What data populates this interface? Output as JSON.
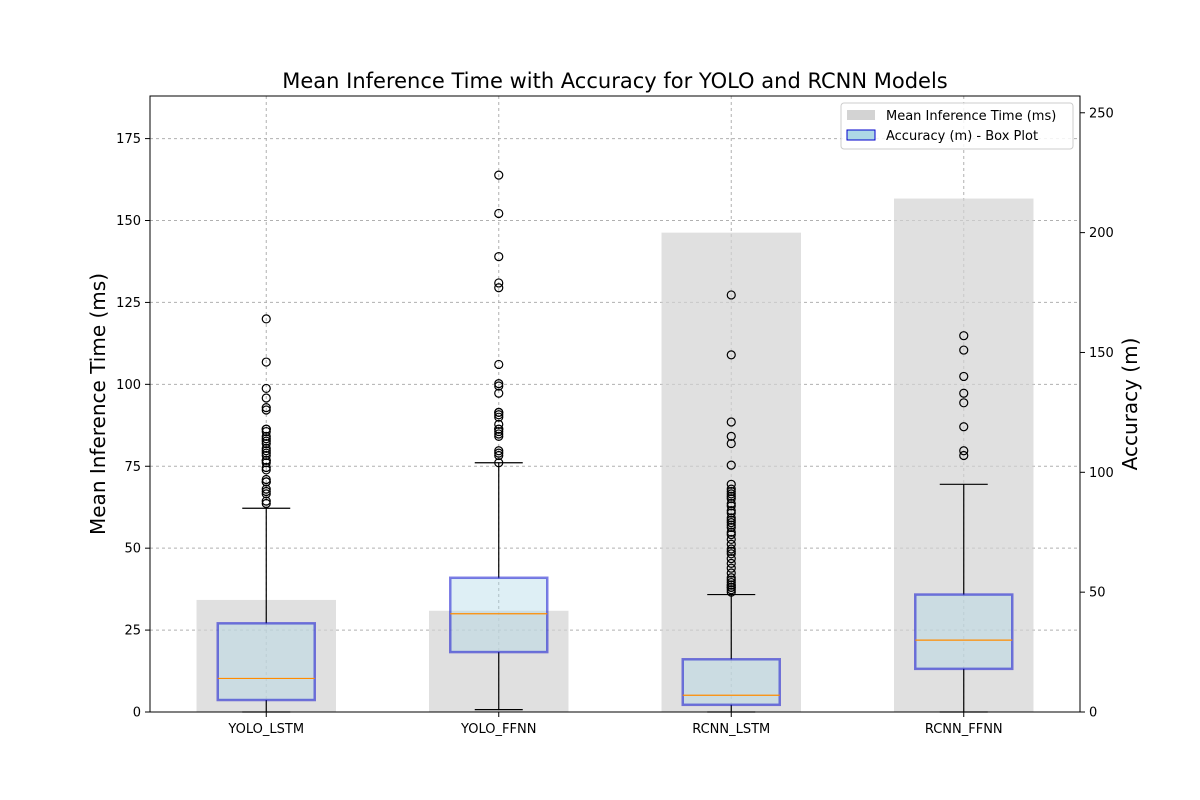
{
  "chart_data": {
    "type": "bar",
    "title": "Mean Inference Time with Accuracy for YOLO and RCNN Models",
    "xlabel": "",
    "ylabel": "Mean Inference Time (ms)",
    "y2label": "Accuracy (m)",
    "categories": [
      "YOLO_LSTM",
      "YOLO_FFNN",
      "RCNN_LSTM",
      "RCNN_FFNN"
    ],
    "ylim": [
      0,
      188
    ],
    "y2lim": [
      0,
      257
    ],
    "yticks": [
      0,
      25,
      50,
      75,
      100,
      125,
      150,
      175
    ],
    "y2ticks": [
      0,
      50,
      100,
      150,
      200,
      250
    ],
    "grid": true,
    "legend_position": "upper right",
    "legend": [
      "Mean Inference Time (ms)",
      "Accuracy (m) - Box Plot"
    ],
    "series": [
      {
        "name": "Mean Inference Time (ms)",
        "axis": "left",
        "type": "bar",
        "values": [
          34.2,
          30.9,
          146.3,
          156.7
        ],
        "color": "#d3d3d3"
      },
      {
        "name": "Accuracy (m) - Box Plot",
        "axis": "right",
        "type": "box",
        "fill_color": "#add8e6",
        "edge_color": "#0000cd",
        "median_color": "#ff8c00",
        "boxes": [
          {
            "whisker_low": 0,
            "q1": 5,
            "median": 14,
            "q3": 37,
            "whisker_high": 85,
            "outliers": [
              87,
              88,
              91,
              92,
              93,
              96,
              96,
              97,
              101,
              102,
              104,
              105,
              105,
              107,
              108,
              109,
              110,
              112,
              113,
              114,
              115,
              117,
              118,
              118,
              126,
              127,
              131,
              135,
              146,
              164
            ]
          },
          {
            "whisker_low": 1,
            "q1": 25,
            "median": 41,
            "q3": 56,
            "whisker_high": 104,
            "outliers": [
              104,
              107,
              108,
              109,
              115,
              116,
              117,
              118,
              118,
              120,
              123,
              124,
              125,
              125,
              133,
              136,
              137,
              145,
              177,
              179,
              190,
              208,
              224
            ]
          },
          {
            "whisker_low": 0,
            "q1": 3,
            "median": 7,
            "q3": 22,
            "whisker_high": 49,
            "outliers": [
              50,
              51,
              52,
              52,
              53,
              53,
              54,
              55,
              56,
              58,
              60,
              62,
              64,
              66,
              67,
              68,
              70,
              72,
              74,
              75,
              77,
              78,
              79,
              80,
              81,
              83,
              84,
              86,
              87,
              89,
              90,
              91,
              92,
              93,
              95,
              103,
              112,
              115,
              121,
              149,
              174
            ]
          },
          {
            "whisker_low": 0,
            "q1": 18,
            "median": 30,
            "q3": 49,
            "whisker_high": 95,
            "outliers": [
              107,
              109,
              119,
              129,
              133,
              140,
              151,
              157
            ]
          }
        ]
      }
    ]
  }
}
